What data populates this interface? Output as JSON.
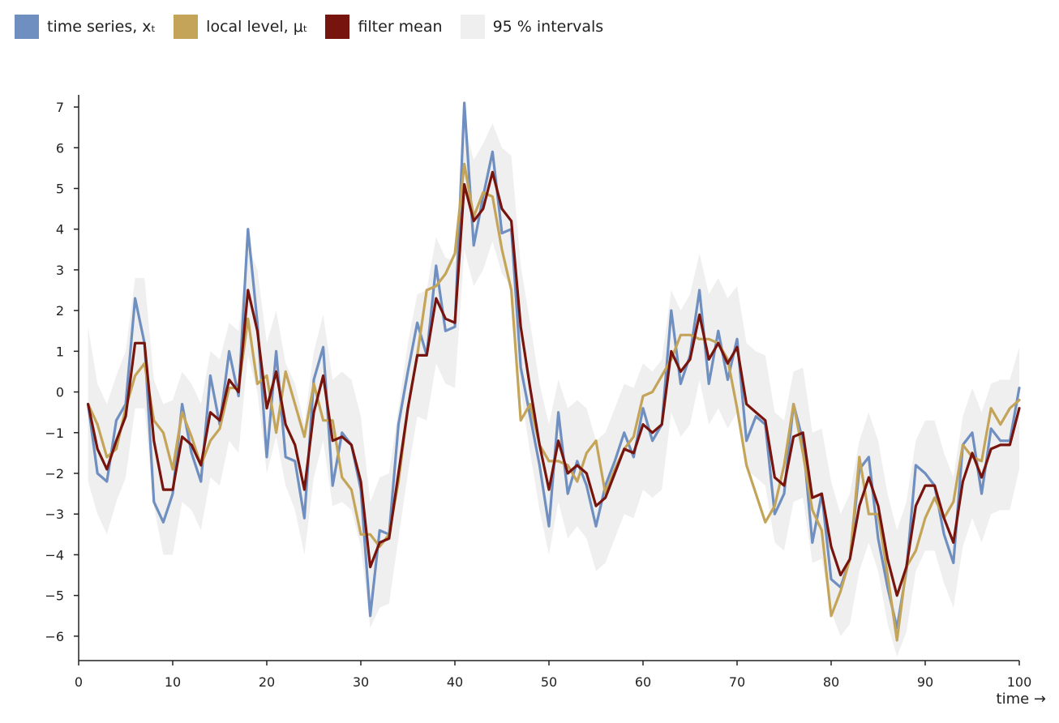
{
  "chart_data": {
    "type": "line",
    "xlabel": "time →",
    "ylabel": "",
    "xlim": [
      0,
      100
    ],
    "ylim": [
      -6.6,
      7.3
    ],
    "x_ticks": [
      0,
      10,
      20,
      30,
      40,
      50,
      60,
      70,
      80,
      90,
      100
    ],
    "y_ticks": [
      -6,
      -5,
      -4,
      -3,
      -2,
      -1,
      0,
      1,
      2,
      3,
      4,
      5,
      6,
      7
    ],
    "legend_position": "top-left",
    "grid": false,
    "x": [
      1,
      2,
      3,
      4,
      5,
      6,
      7,
      8,
      9,
      10,
      11,
      12,
      13,
      14,
      15,
      16,
      17,
      18,
      19,
      20,
      21,
      22,
      23,
      24,
      25,
      26,
      27,
      28,
      29,
      30,
      31,
      32,
      33,
      34,
      35,
      36,
      37,
      38,
      39,
      40,
      41,
      42,
      43,
      44,
      45,
      46,
      47,
      48,
      49,
      50,
      51,
      52,
      53,
      54,
      55,
      56,
      57,
      58,
      59,
      60,
      61,
      62,
      63,
      64,
      65,
      66,
      67,
      68,
      69,
      70,
      71,
      72,
      73,
      74,
      75,
      76,
      77,
      78,
      79,
      80,
      81,
      82,
      83,
      84,
      85,
      86,
      87,
      88,
      89,
      90,
      91,
      92,
      93,
      94,
      95,
      96,
      97,
      98,
      99,
      100
    ],
    "legend": [
      {
        "name": "time series, xₜ",
        "color": "#6f8fc0"
      },
      {
        "name": "local level, μₜ",
        "color": "#c3a459"
      },
      {
        "name": "filter mean",
        "color": "#76140d"
      },
      {
        "name": "95 % intervals",
        "color": "#efefef"
      }
    ],
    "series": [
      {
        "name": "time series, xₜ",
        "kind": "line",
        "color": "#6f8fc0",
        "values": [
          -0.3,
          -2.0,
          -2.2,
          -0.7,
          -0.3,
          2.3,
          1.2,
          -2.7,
          -3.2,
          -2.5,
          -0.3,
          -1.5,
          -2.2,
          0.4,
          -0.8,
          1.0,
          -0.1,
          4.0,
          1.7,
          -1.6,
          1.0,
          -1.6,
          -1.7,
          -3.1,
          0.3,
          1.1,
          -2.3,
          -1.0,
          -1.3,
          -2.4,
          -5.5,
          -3.4,
          -3.5,
          -0.8,
          0.5,
          1.7,
          0.9,
          3.1,
          1.5,
          1.6,
          7.1,
          3.6,
          4.8,
          5.9,
          3.9,
          4.0,
          0.6,
          -0.6,
          -1.8,
          -3.3,
          -0.5,
          -2.5,
          -1.7,
          -2.3,
          -3.3,
          -2.3,
          -1.7,
          -1.0,
          -1.6,
          -0.4,
          -1.2,
          -0.8,
          2.0,
          0.2,
          0.9,
          2.5,
          0.2,
          1.5,
          0.3,
          1.3,
          -1.2,
          -0.6,
          -0.8,
          -3.0,
          -2.5,
          -0.3,
          -1.2,
          -3.7,
          -2.5,
          -4.6,
          -4.8,
          -4.1,
          -1.9,
          -1.6,
          -3.6,
          -4.8,
          -5.8,
          -4.4,
          -1.8,
          -2.0,
          -2.3,
          -3.5,
          -4.2,
          -1.3,
          -1.0,
          -2.5,
          -0.9,
          -1.2,
          -1.2,
          0.1
        ]
      },
      {
        "name": "local level, μₜ",
        "kind": "line",
        "color": "#c3a459",
        "values": [
          -0.3,
          -0.8,
          -1.6,
          -1.4,
          -0.4,
          0.4,
          0.7,
          -0.7,
          -1.0,
          -1.9,
          -0.5,
          -1.1,
          -1.8,
          -1.2,
          -0.9,
          0.1,
          0.1,
          1.8,
          0.2,
          0.4,
          -1.0,
          0.5,
          -0.3,
          -1.1,
          0.2,
          -0.7,
          -0.7,
          -2.1,
          -2.4,
          -3.5,
          -3.5,
          -3.8,
          -3.5,
          -2.2,
          -0.4,
          0.9,
          2.5,
          2.6,
          2.9,
          3.4,
          5.6,
          4.3,
          4.9,
          4.8,
          3.5,
          2.5,
          -0.7,
          -0.3,
          -1.3,
          -1.7,
          -1.7,
          -1.8,
          -2.2,
          -1.5,
          -1.2,
          -2.5,
          -1.9,
          -1.4,
          -1.1,
          -0.1,
          0.0,
          0.4,
          0.8,
          1.4,
          1.4,
          1.3,
          1.3,
          1.2,
          0.8,
          -0.4,
          -1.8,
          -2.5,
          -3.2,
          -2.8,
          -1.8,
          -0.3,
          -1.5,
          -2.9,
          -3.4,
          -5.5,
          -4.9,
          -4.1,
          -1.6,
          -3.0,
          -3.0,
          -4.5,
          -6.1,
          -4.3,
          -3.9,
          -3.1,
          -2.6,
          -3.1,
          -2.7,
          -1.3,
          -1.6,
          -1.7,
          -0.4,
          -0.8,
          -0.4,
          -0.2
        ]
      },
      {
        "name": "filter mean",
        "kind": "line",
        "color": "#76140d",
        "values": [
          -0.3,
          -1.4,
          -1.9,
          -1.2,
          -0.6,
          1.2,
          1.2,
          -1.2,
          -2.4,
          -2.4,
          -1.1,
          -1.3,
          -1.8,
          -0.5,
          -0.7,
          0.3,
          0.0,
          2.5,
          1.5,
          -0.4,
          0.5,
          -0.8,
          -1.3,
          -2.4,
          -0.5,
          0.4,
          -1.2,
          -1.1,
          -1.3,
          -2.2,
          -4.3,
          -3.7,
          -3.6,
          -2.0,
          -0.4,
          0.9,
          0.9,
          2.3,
          1.8,
          1.7,
          5.1,
          4.2,
          4.5,
          5.4,
          4.5,
          4.2,
          1.6,
          0.1,
          -1.3,
          -2.4,
          -1.2,
          -2.0,
          -1.8,
          -2.0,
          -2.8,
          -2.6,
          -2.0,
          -1.4,
          -1.5,
          -0.8,
          -1.0,
          -0.8,
          1.0,
          0.5,
          0.8,
          1.9,
          0.8,
          1.2,
          0.7,
          1.1,
          -0.3,
          -0.5,
          -0.7,
          -2.1,
          -2.3,
          -1.1,
          -1.0,
          -2.6,
          -2.5,
          -3.8,
          -4.5,
          -4.1,
          -2.8,
          -2.1,
          -2.8,
          -4.1,
          -5.0,
          -4.3,
          -2.8,
          -2.3,
          -2.3,
          -3.1,
          -3.7,
          -2.2,
          -1.5,
          -2.1,
          -1.4,
          -1.3,
          -1.3,
          -0.4
        ]
      },
      {
        "name": "95 % intervals",
        "kind": "band",
        "color": "#efefef",
        "upper": [
          1.6,
          0.2,
          -0.3,
          0.4,
          1.0,
          2.8,
          2.8,
          0.3,
          -0.3,
          -0.2,
          0.5,
          0.2,
          -0.3,
          1.0,
          0.8,
          1.7,
          1.5,
          3.6,
          3.0,
          1.2,
          2.0,
          0.7,
          0.2,
          -0.8,
          1.0,
          1.9,
          0.3,
          0.5,
          0.3,
          -0.6,
          -2.7,
          -2.1,
          -2.0,
          -0.4,
          1.2,
          2.4,
          2.5,
          3.8,
          3.3,
          3.2,
          6.6,
          5.7,
          6.1,
          6.6,
          6.0,
          5.8,
          3.1,
          1.7,
          0.2,
          -0.8,
          0.3,
          -0.4,
          -0.2,
          -0.4,
          -1.2,
          -1.0,
          -0.4,
          0.2,
          0.1,
          0.7,
          0.5,
          0.8,
          2.5,
          2.0,
          2.4,
          3.4,
          2.4,
          2.8,
          2.3,
          2.6,
          1.2,
          1.0,
          0.9,
          -0.5,
          -0.7,
          0.5,
          0.6,
          -1.0,
          -0.9,
          -2.2,
          -3.0,
          -2.5,
          -1.2,
          -0.5,
          -1.2,
          -2.5,
          -3.4,
          -2.7,
          -1.2,
          -0.7,
          -0.7,
          -1.5,
          -2.1,
          -0.6,
          0.1,
          -0.5,
          0.2,
          0.3,
          0.3,
          1.1
        ]
      }
    ],
    "band_lower": [
      -2.2,
      -3.0,
      -3.5,
      -2.7,
      -2.1,
      -0.4,
      -0.4,
      -2.8,
      -4.0,
      -4.0,
      -2.7,
      -2.9,
      -3.4,
      -2.1,
      -2.3,
      -1.2,
      -1.5,
      0.9,
      0.0,
      -2.0,
      -1.1,
      -2.3,
      -2.9,
      -4.0,
      -2.1,
      -1.2,
      -2.8,
      -2.7,
      -2.9,
      -3.8,
      -5.8,
      -5.3,
      -5.2,
      -3.6,
      -2.0,
      -0.6,
      -0.7,
      0.7,
      0.2,
      0.1,
      3.5,
      2.6,
      3.0,
      3.7,
      2.9,
      2.6,
      0.0,
      -1.5,
      -2.9,
      -4.0,
      -2.7,
      -3.6,
      -3.3,
      -3.6,
      -4.4,
      -4.2,
      -3.6,
      -3.0,
      -3.1,
      -2.4,
      -2.6,
      -2.4,
      -0.5,
      -1.1,
      -0.8,
      0.3,
      -0.8,
      -0.4,
      -0.9,
      -0.5,
      -1.9,
      -2.1,
      -2.3,
      -3.7,
      -3.9,
      -2.7,
      -2.6,
      -4.2,
      -4.1,
      -5.4,
      -6.0,
      -5.7,
      -4.4,
      -3.7,
      -4.4,
      -5.7,
      -6.5,
      -5.9,
      -4.4,
      -3.9,
      -3.9,
      -4.7,
      -5.3,
      -3.8,
      -3.1,
      -3.7,
      -3.0,
      -2.9,
      -2.9,
      -1.9
    ]
  }
}
